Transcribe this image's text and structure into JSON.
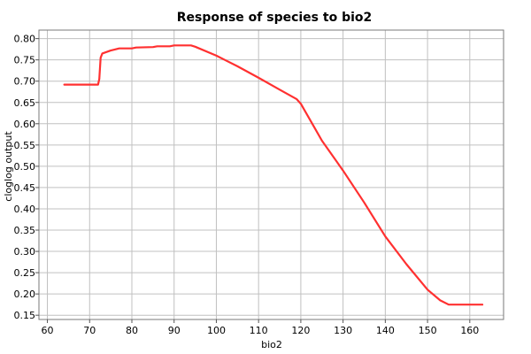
{
  "chart_data": {
    "type": "line",
    "title": "Response of species to bio2",
    "xlabel": "bio2",
    "ylabel": "cloglog output",
    "xlim": [
      58,
      168
    ],
    "ylim": [
      0.14,
      0.82
    ],
    "x_ticks": [
      60,
      70,
      80,
      90,
      100,
      110,
      120,
      130,
      140,
      150,
      160
    ],
    "y_ticks": [
      0.15,
      0.2,
      0.25,
      0.3,
      0.35,
      0.4,
      0.45,
      0.5,
      0.55,
      0.6,
      0.65,
      0.7,
      0.75,
      0.8
    ],
    "grid": true,
    "series": [
      {
        "color": "#ff3030",
        "points": [
          [
            64,
            0.692
          ],
          [
            70,
            0.692
          ],
          [
            72,
            0.692
          ],
          [
            72.3,
            0.705
          ],
          [
            72.6,
            0.755
          ],
          [
            73,
            0.765
          ],
          [
            75,
            0.772
          ],
          [
            77,
            0.777
          ],
          [
            80,
            0.777
          ],
          [
            81,
            0.779
          ],
          [
            85,
            0.78
          ],
          [
            86,
            0.782
          ],
          [
            89,
            0.782
          ],
          [
            90,
            0.784
          ],
          [
            94,
            0.784
          ],
          [
            95,
            0.781
          ],
          [
            100,
            0.76
          ],
          [
            105,
            0.735
          ],
          [
            110,
            0.708
          ],
          [
            115,
            0.68
          ],
          [
            119,
            0.658
          ],
          [
            120,
            0.647
          ],
          [
            123,
            0.595
          ],
          [
            125,
            0.56
          ],
          [
            130,
            0.49
          ],
          [
            135,
            0.415
          ],
          [
            140,
            0.335
          ],
          [
            145,
            0.27
          ],
          [
            150,
            0.21
          ],
          [
            153,
            0.185
          ],
          [
            155,
            0.175
          ],
          [
            163,
            0.175
          ]
        ]
      }
    ]
  }
}
